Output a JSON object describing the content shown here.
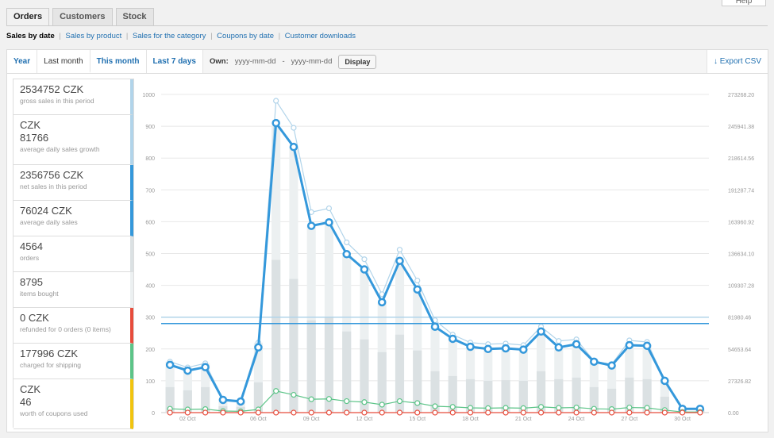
{
  "tabs": [
    {
      "label": "Orders",
      "active": true
    },
    {
      "label": "Customers",
      "active": false
    },
    {
      "label": "Stock",
      "active": false
    }
  ],
  "help_label": "Help",
  "subnav": {
    "current": "Sales by date",
    "links": [
      "Sales by product",
      "Sales for the category",
      "Coupons by date",
      "Customer downloads"
    ]
  },
  "ranges": {
    "year": "Year",
    "last_month": "Last month",
    "this_month": "This month",
    "last_7_days": "Last 7 days",
    "own_label": "Own:",
    "own_from": "yyyy-mm-dd",
    "own_dash": "-",
    "own_to": "yyyy-mm-dd",
    "display": "Display",
    "export": "Export CSV"
  },
  "legend": [
    {
      "value": "2534752  CZK",
      "label": "gross sales in this period",
      "color": "#b1d4ea"
    },
    {
      "value": "CZK\n81766",
      "label": "average daily sales growth",
      "color": "#b1d4ea"
    },
    {
      "value": "2356756  CZK",
      "label": "net sales in this period",
      "color": "#3498db"
    },
    {
      "value": "76024  CZK",
      "label": "average daily sales",
      "color": "#3498db"
    },
    {
      "value": "4564",
      "label": "orders",
      "color": "#dbe1e3"
    },
    {
      "value": "8795",
      "label": "items bought",
      "color": "#ecf0f1"
    },
    {
      "value": "0  CZK",
      "label": "refunded for 0 orders (0 items)",
      "color": "#e74c3c"
    },
    {
      "value": "177996  CZK",
      "label": "charged for shipping",
      "color": "#5cc488"
    },
    {
      "value": "CZK\n46",
      "label": "worth of coupons used",
      "color": "#f1c40f"
    }
  ],
  "chart_data": {
    "type": "line",
    "x": [
      "01 Oct",
      "02 Oct",
      "03 Oct",
      "04 Oct",
      "05 Oct",
      "06 Oct",
      "07 Oct",
      "08 Oct",
      "09 Oct",
      "10 Oct",
      "11 Oct",
      "12 Oct",
      "13 Oct",
      "14 Oct",
      "15 Oct",
      "16 Oct",
      "17 Oct",
      "18 Oct",
      "19 Oct",
      "20 Oct",
      "21 Oct",
      "22 Oct",
      "23 Oct",
      "24 Oct",
      "25 Oct",
      "26 Oct",
      "27 Oct",
      "28 Oct",
      "29 Oct",
      "30 Oct",
      "31 Oct"
    ],
    "xtick_labels": [
      "02 Oct",
      "06 Oct",
      "09 Oct",
      "12 Oct",
      "15 Oct",
      "18 Oct",
      "21 Oct",
      "24 Oct",
      "27 Oct",
      "30 Oct"
    ],
    "yticks_left": [
      "0",
      "100",
      "200",
      "300",
      "400",
      "500",
      "600",
      "700",
      "800",
      "900",
      "1000"
    ],
    "yticks_right": [
      "0.00",
      "27326.82",
      "54653.64",
      "81980.46",
      "109307.28",
      "136634.10",
      "163960.92",
      "191287.74",
      "218614.56",
      "245941.38",
      "273268.20"
    ],
    "ylim": [
      0,
      1000
    ],
    "series": [
      {
        "values": [
          160,
          142,
          155,
          42,
          38,
          220,
          980,
          895,
          630,
          642,
          535,
          482,
          372,
          512,
          415,
          290,
          245,
          220,
          215,
          217,
          212,
          270,
          225,
          230,
          162,
          152,
          227,
          222,
          102,
          13,
          12
        ],
        "color": "#b1d4ea"
      },
      {
        "values": [
          150,
          132,
          143,
          40,
          35,
          205,
          910,
          835,
          587,
          598,
          498,
          450,
          347,
          477,
          387,
          270,
          232,
          207,
          200,
          202,
          198,
          255,
          205,
          215,
          160,
          148,
          212,
          210,
          100,
          12,
          12
        ],
        "color": "#3498db"
      },
      {
        "values": [
          12,
          10,
          11,
          5,
          4,
          10,
          68,
          56,
          42,
          43,
          36,
          33,
          25,
          36,
          30,
          20,
          18,
          15,
          14,
          15,
          14,
          18,
          15,
          16,
          12,
          11,
          16,
          15,
          8,
          2,
          2
        ],
        "color": "#5cc488"
      },
      {
        "values": [
          0,
          0,
          0,
          0,
          0,
          0,
          0,
          0,
          0,
          0,
          0,
          0,
          0,
          0,
          0,
          0,
          0,
          0,
          0,
          0,
          0,
          0,
          0,
          0,
          0,
          0,
          0,
          0,
          0,
          0,
          0
        ],
        "color": "#e74c3c"
      }
    ],
    "bars_orders": [
      80,
      70,
      80,
      20,
      18,
      95,
      480,
      420,
      290,
      300,
      255,
      230,
      190,
      245,
      195,
      130,
      115,
      105,
      100,
      102,
      100,
      130,
      105,
      110,
      80,
      75,
      110,
      105,
      50,
      6,
      6
    ],
    "bars_items": [
      160,
      142,
      155,
      42,
      38,
      220,
      900,
      835,
      587,
      598,
      498,
      450,
      347,
      477,
      387,
      270,
      232,
      207,
      200,
      202,
      198,
      255,
      205,
      215,
      160,
      148,
      212,
      210,
      100,
      12,
      12
    ],
    "average_lines": [
      {
        "value": 300,
        "color": "#b1d4ea"
      },
      {
        "value": 280,
        "color": "#3498db"
      }
    ]
  }
}
